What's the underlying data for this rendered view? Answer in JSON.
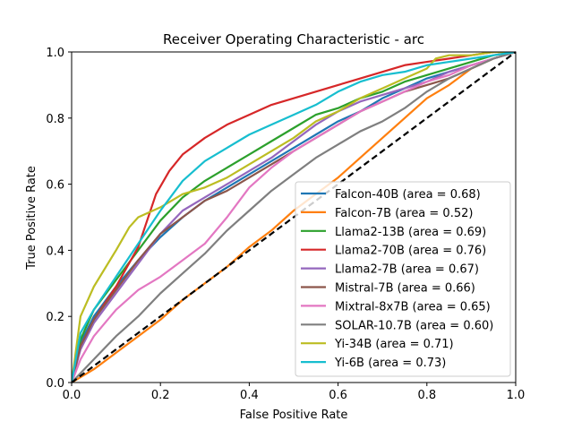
{
  "chart_data": {
    "type": "line",
    "title": "Receiver Operating Characteristic - arc",
    "xlabel": "False Positive Rate",
    "ylabel": "True Positive Rate",
    "xlim": [
      0,
      1
    ],
    "ylim": [
      0,
      1
    ],
    "xticks": [
      "0.0",
      "0.2",
      "0.4",
      "0.6",
      "0.8",
      "1.0"
    ],
    "yticks": [
      "0.0",
      "0.2",
      "0.4",
      "0.6",
      "0.8",
      "1.0"
    ],
    "grid": false,
    "legend_position": "lower-right",
    "diagonal_reference": {
      "style": "dashed",
      "color": "#000000"
    },
    "series": [
      {
        "name": "Falcon-40B (area = 0.68)",
        "color": "#1f77b4",
        "x": [
          0,
          0.02,
          0.05,
          0.1,
          0.15,
          0.2,
          0.25,
          0.3,
          0.35,
          0.4,
          0.45,
          0.5,
          0.55,
          0.6,
          0.65,
          0.7,
          0.75,
          0.8,
          0.85,
          0.9,
          0.95,
          1.0
        ],
        "y": [
          0,
          0.12,
          0.2,
          0.29,
          0.37,
          0.44,
          0.5,
          0.55,
          0.59,
          0.63,
          0.67,
          0.71,
          0.75,
          0.79,
          0.82,
          0.86,
          0.89,
          0.92,
          0.94,
          0.96,
          0.98,
          1.0
        ]
      },
      {
        "name": "Falcon-7B (area = 0.52)",
        "color": "#ff7f0e",
        "x": [
          0,
          0.05,
          0.1,
          0.15,
          0.2,
          0.25,
          0.3,
          0.35,
          0.4,
          0.45,
          0.5,
          0.55,
          0.6,
          0.65,
          0.7,
          0.75,
          0.8,
          0.85,
          0.9,
          0.95,
          1.0
        ],
        "y": [
          0,
          0.04,
          0.09,
          0.14,
          0.19,
          0.25,
          0.3,
          0.35,
          0.41,
          0.46,
          0.52,
          0.57,
          0.62,
          0.68,
          0.74,
          0.8,
          0.86,
          0.9,
          0.95,
          0.98,
          1.0
        ]
      },
      {
        "name": "Llama2-13B (area = 0.69)",
        "color": "#2ca02c",
        "x": [
          0,
          0.02,
          0.05,
          0.1,
          0.15,
          0.2,
          0.25,
          0.3,
          0.35,
          0.4,
          0.45,
          0.5,
          0.55,
          0.6,
          0.65,
          0.7,
          0.75,
          0.8,
          0.85,
          0.9,
          0.95,
          1.0
        ],
        "y": [
          0,
          0.13,
          0.22,
          0.31,
          0.4,
          0.49,
          0.56,
          0.61,
          0.65,
          0.69,
          0.73,
          0.77,
          0.81,
          0.83,
          0.86,
          0.88,
          0.91,
          0.93,
          0.95,
          0.97,
          0.99,
          1.0
        ]
      },
      {
        "name": "Llama2-70B (area = 0.76)",
        "color": "#d62728",
        "x": [
          0,
          0.02,
          0.05,
          0.1,
          0.15,
          0.19,
          0.22,
          0.25,
          0.3,
          0.35,
          0.4,
          0.45,
          0.5,
          0.55,
          0.6,
          0.65,
          0.7,
          0.75,
          0.8,
          0.85,
          0.9,
          0.95,
          1.0
        ],
        "y": [
          0,
          0.11,
          0.19,
          0.29,
          0.41,
          0.57,
          0.64,
          0.69,
          0.74,
          0.78,
          0.81,
          0.84,
          0.86,
          0.88,
          0.9,
          0.92,
          0.94,
          0.96,
          0.97,
          0.98,
          0.99,
          1.0,
          1.0
        ]
      },
      {
        "name": "Llama2-7B (area = 0.67)",
        "color": "#9467bd",
        "x": [
          0,
          0.02,
          0.05,
          0.1,
          0.15,
          0.2,
          0.25,
          0.3,
          0.35,
          0.4,
          0.45,
          0.5,
          0.55,
          0.6,
          0.65,
          0.7,
          0.75,
          0.8,
          0.85,
          0.9,
          0.95,
          1.0
        ],
        "y": [
          0,
          0.1,
          0.18,
          0.27,
          0.36,
          0.45,
          0.52,
          0.56,
          0.6,
          0.64,
          0.68,
          0.73,
          0.78,
          0.82,
          0.85,
          0.87,
          0.89,
          0.91,
          0.94,
          0.96,
          0.98,
          1.0
        ]
      },
      {
        "name": "Mistral-7B (area = 0.66)",
        "color": "#8c564b",
        "x": [
          0,
          0.02,
          0.05,
          0.1,
          0.15,
          0.2,
          0.25,
          0.3,
          0.35,
          0.4,
          0.45,
          0.5,
          0.55,
          0.6,
          0.65,
          0.7,
          0.75,
          0.8,
          0.85,
          0.9,
          0.95,
          1.0
        ],
        "y": [
          0,
          0.11,
          0.19,
          0.28,
          0.37,
          0.45,
          0.5,
          0.55,
          0.58,
          0.62,
          0.66,
          0.7,
          0.74,
          0.78,
          0.82,
          0.85,
          0.88,
          0.9,
          0.92,
          0.95,
          0.98,
          1.0
        ]
      },
      {
        "name": "Mixtral-8x7B (area = 0.65)",
        "color": "#e377c2",
        "x": [
          0,
          0.02,
          0.05,
          0.1,
          0.15,
          0.2,
          0.25,
          0.3,
          0.35,
          0.4,
          0.45,
          0.5,
          0.55,
          0.6,
          0.65,
          0.7,
          0.75,
          0.8,
          0.85,
          0.9,
          0.95,
          1.0
        ],
        "y": [
          0,
          0.07,
          0.14,
          0.22,
          0.28,
          0.32,
          0.37,
          0.42,
          0.5,
          0.59,
          0.65,
          0.7,
          0.74,
          0.78,
          0.82,
          0.85,
          0.88,
          0.91,
          0.93,
          0.96,
          0.98,
          1.0
        ]
      },
      {
        "name": "SOLAR-10.7B (area = 0.60)",
        "color": "#7f7f7f",
        "x": [
          0,
          0.05,
          0.1,
          0.15,
          0.2,
          0.25,
          0.3,
          0.35,
          0.4,
          0.45,
          0.5,
          0.55,
          0.6,
          0.65,
          0.7,
          0.75,
          0.8,
          0.85,
          0.9,
          0.95,
          1.0
        ],
        "y": [
          0,
          0.07,
          0.14,
          0.2,
          0.27,
          0.33,
          0.39,
          0.46,
          0.52,
          0.58,
          0.63,
          0.68,
          0.72,
          0.76,
          0.79,
          0.83,
          0.88,
          0.92,
          0.95,
          0.98,
          1.0
        ]
      },
      {
        "name": "Yi-34B (area = 0.71)",
        "color": "#bcbd22",
        "x": [
          0,
          0.02,
          0.05,
          0.1,
          0.13,
          0.15,
          0.2,
          0.25,
          0.3,
          0.35,
          0.4,
          0.45,
          0.5,
          0.55,
          0.6,
          0.65,
          0.7,
          0.75,
          0.8,
          0.82,
          0.85,
          0.9,
          0.95,
          1.0
        ],
        "y": [
          0,
          0.2,
          0.29,
          0.4,
          0.47,
          0.5,
          0.53,
          0.57,
          0.59,
          0.62,
          0.66,
          0.7,
          0.74,
          0.79,
          0.82,
          0.86,
          0.89,
          0.92,
          0.95,
          0.98,
          0.99,
          0.99,
          1.0,
          1.0
        ]
      },
      {
        "name": "Yi-6B (area = 0.73)",
        "color": "#17becf",
        "x": [
          0,
          0.02,
          0.05,
          0.1,
          0.15,
          0.2,
          0.25,
          0.3,
          0.35,
          0.4,
          0.45,
          0.5,
          0.55,
          0.6,
          0.65,
          0.7,
          0.75,
          0.8,
          0.85,
          0.9,
          0.95,
          1.0
        ],
        "y": [
          0,
          0.15,
          0.22,
          0.32,
          0.42,
          0.52,
          0.61,
          0.67,
          0.71,
          0.75,
          0.78,
          0.81,
          0.84,
          0.88,
          0.91,
          0.93,
          0.94,
          0.96,
          0.97,
          0.98,
          0.99,
          1.0
        ]
      }
    ]
  }
}
